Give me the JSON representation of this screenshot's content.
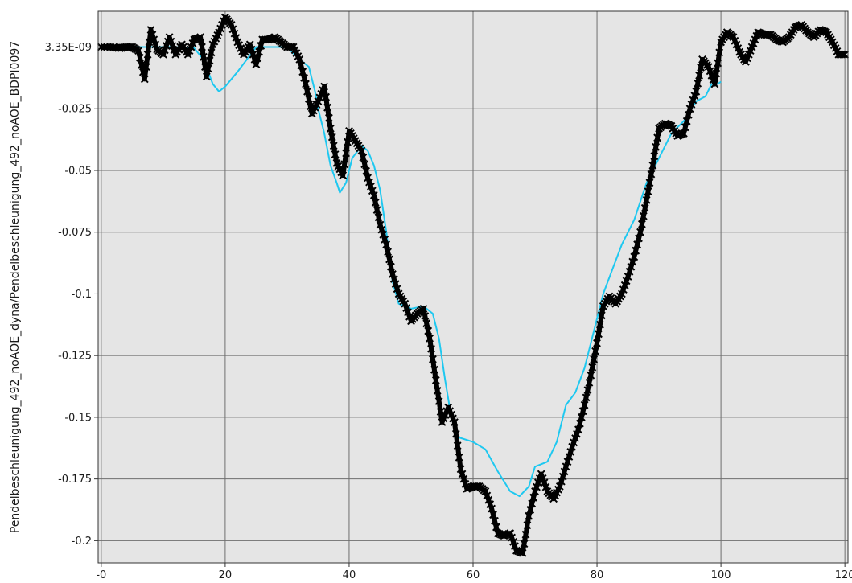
{
  "chart_data": {
    "type": "line",
    "title": "",
    "xlabel": "",
    "ylabel": "Pendelbeschleunigung_492_noAOE_dyna/Pendelbeschleunigung_492_noAOE_BDPI0097",
    "xlim": [
      -0.5,
      120.5
    ],
    "ylim": [
      -0.209,
      0.0145
    ],
    "grid": true,
    "legend": "none",
    "background": "#e5e5e5",
    "x_ticks": [
      {
        "value": 0,
        "label": "-0"
      },
      {
        "value": 20,
        "label": "20"
      },
      {
        "value": 40,
        "label": "40"
      },
      {
        "value": 60,
        "label": "60"
      },
      {
        "value": 80,
        "label": "80"
      },
      {
        "value": 100,
        "label": "100"
      },
      {
        "value": 120,
        "label": "120"
      }
    ],
    "y_ticks": [
      {
        "value": 0.0,
        "label": "3.35E-09"
      },
      {
        "value": -0.025,
        "label": "-0.025"
      },
      {
        "value": -0.05,
        "label": "-0.05"
      },
      {
        "value": -0.075,
        "label": "-0.075"
      },
      {
        "value": -0.1,
        "label": "-0.1"
      },
      {
        "value": -0.125,
        "label": "-0.125"
      },
      {
        "value": -0.15,
        "label": "-0.15"
      },
      {
        "value": -0.175,
        "label": "-0.175"
      },
      {
        "value": -0.2,
        "label": "-0.2"
      }
    ],
    "series": [
      {
        "color": "#1ec8f0",
        "style": "line",
        "x": [
          0,
          5,
          12,
          15,
          16.5,
          18,
          19,
          20,
          22,
          25,
          28,
          30,
          32,
          33.5,
          34.5,
          35,
          36,
          37,
          38,
          38.5,
          39.5,
          40.5,
          42,
          43,
          44,
          45,
          46,
          47,
          48,
          50,
          52,
          53.5,
          54.5,
          55.5,
          56.5,
          57.5,
          60,
          62,
          64,
          66,
          67.5,
          69,
          70,
          72,
          73.5,
          75,
          76.5,
          78,
          79.5,
          81,
          82.5,
          84,
          86,
          88,
          90,
          92,
          94,
          96,
          97.5,
          98.5,
          99.5,
          100
        ],
        "y": [
          0,
          0,
          0,
          -0.0005,
          -0.005,
          -0.015,
          -0.018,
          -0.016,
          -0.01,
          0,
          0,
          0,
          -0.005,
          -0.008,
          -0.018,
          -0.025,
          -0.035,
          -0.048,
          -0.055,
          -0.059,
          -0.055,
          -0.045,
          -0.04,
          -0.042,
          -0.048,
          -0.058,
          -0.075,
          -0.095,
          -0.104,
          -0.106,
          -0.105,
          -0.108,
          -0.118,
          -0.135,
          -0.15,
          -0.158,
          -0.16,
          -0.163,
          -0.172,
          -0.18,
          -0.182,
          -0.178,
          -0.17,
          -0.168,
          -0.16,
          -0.145,
          -0.14,
          -0.13,
          -0.115,
          -0.1,
          -0.09,
          -0.08,
          -0.07,
          -0.055,
          -0.045,
          -0.035,
          -0.03,
          -0.022,
          -0.02,
          -0.015,
          -0.015,
          -0.014
        ]
      },
      {
        "color": "#000000",
        "style": "markers",
        "marker": "x",
        "x": [
          0,
          2,
          3,
          4,
          5,
          6,
          7,
          8,
          9,
          10,
          11,
          12,
          13,
          14,
          15,
          16,
          17,
          18,
          19,
          20,
          21,
          22,
          23,
          24,
          25,
          26,
          27,
          28,
          29,
          30,
          31,
          32,
          33,
          34,
          35,
          36,
          37,
          38,
          39,
          40,
          41,
          42,
          43,
          44,
          45,
          46,
          47,
          48,
          49,
          50,
          51,
          52,
          53,
          54,
          55,
          56,
          57,
          58,
          59,
          60,
          61,
          62,
          63,
          64,
          65,
          66,
          67,
          68,
          69,
          70,
          71,
          72,
          73,
          74,
          75,
          76,
          77,
          78,
          79,
          80,
          81,
          82,
          83,
          84,
          85,
          86,
          87,
          88,
          89,
          90,
          91,
          92,
          93,
          94,
          95,
          96,
          97,
          98,
          99,
          100,
          101,
          102,
          103,
          104,
          105,
          106,
          107,
          108,
          109,
          110,
          111,
          112,
          113,
          114,
          115,
          116,
          117,
          118,
          119,
          120
        ],
        "y": [
          0,
          0,
          -0.0005,
          0,
          0,
          -0.0015,
          -0.013,
          0.007,
          -0.001,
          -0.003,
          0.004,
          -0.003,
          0.001,
          -0.003,
          0.003,
          0.004,
          -0.012,
          0.001,
          0.006,
          0.012,
          0.009,
          0.002,
          -0.003,
          0.001,
          -0.007,
          0.003,
          0.003,
          0.004,
          0.002,
          0,
          0,
          -0.005,
          -0.015,
          -0.027,
          -0.022,
          -0.016,
          -0.033,
          -0.047,
          -0.052,
          -0.034,
          -0.038,
          -0.042,
          -0.053,
          -0.06,
          -0.072,
          -0.08,
          -0.092,
          -0.1,
          -0.104,
          -0.111,
          -0.108,
          -0.106,
          -0.118,
          -0.135,
          -0.152,
          -0.146,
          -0.152,
          -0.171,
          -0.179,
          -0.178,
          -0.178,
          -0.18,
          -0.187,
          -0.197,
          -0.198,
          -0.197,
          -0.204,
          -0.205,
          -0.19,
          -0.18,
          -0.173,
          -0.18,
          -0.183,
          -0.178,
          -0.17,
          -0.162,
          -0.155,
          -0.145,
          -0.133,
          -0.12,
          -0.105,
          -0.101,
          -0.104,
          -0.1,
          -0.093,
          -0.085,
          -0.075,
          -0.062,
          -0.048,
          -0.033,
          -0.031,
          -0.032,
          -0.036,
          -0.035,
          -0.025,
          -0.018,
          -0.005,
          -0.008,
          -0.015,
          0.002,
          0.006,
          0.004,
          -0.002,
          -0.006,
          0,
          0.006,
          0.005,
          0.005,
          0.003,
          0.002,
          0.004,
          0.008,
          0.009,
          0.006,
          0.004,
          0.007,
          0.006,
          0.002,
          -0.003,
          -0.003
        ]
      }
    ]
  }
}
